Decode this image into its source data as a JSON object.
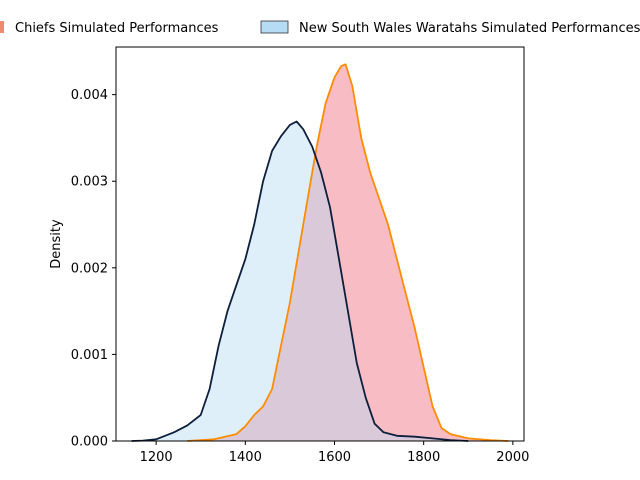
{
  "chart_data": {
    "type": "area",
    "xlabel": "",
    "ylabel": "Density",
    "xlim": [
      1110,
      2025
    ],
    "ylim": [
      0,
      0.00455
    ],
    "x_ticks": [
      "1200",
      "1400",
      "1600",
      "1800",
      "2000"
    ],
    "y_ticks": [
      "0.000",
      "0.001",
      "0.002",
      "0.003",
      "0.004"
    ],
    "legend_position": "top",
    "series": [
      {
        "name": "Chiefs Simulated Performances",
        "fill_color": "#f4a6b0",
        "line_color": "#ff8c00",
        "legend_patch_color": "#f08a70",
        "points": [
          [
            1270,
            0
          ],
          [
            1330,
            2e-05
          ],
          [
            1380,
            8e-05
          ],
          [
            1400,
            0.00017
          ],
          [
            1420,
            0.0003
          ],
          [
            1440,
            0.0004
          ],
          [
            1460,
            0.0006
          ],
          [
            1480,
            0.0011
          ],
          [
            1500,
            0.0016
          ],
          [
            1520,
            0.0022
          ],
          [
            1540,
            0.0028
          ],
          [
            1560,
            0.0034
          ],
          [
            1580,
            0.0039
          ],
          [
            1600,
            0.0042
          ],
          [
            1615,
            0.00433
          ],
          [
            1625,
            0.00435
          ],
          [
            1640,
            0.0041
          ],
          [
            1660,
            0.0035
          ],
          [
            1680,
            0.0031
          ],
          [
            1700,
            0.0028
          ],
          [
            1720,
            0.0025
          ],
          [
            1740,
            0.0021
          ],
          [
            1760,
            0.0017
          ],
          [
            1780,
            0.0013
          ],
          [
            1800,
            0.00085
          ],
          [
            1820,
            0.0004
          ],
          [
            1840,
            0.00015
          ],
          [
            1860,
            8e-05
          ],
          [
            1900,
            3e-05
          ],
          [
            1950,
            1e-05
          ],
          [
            1990,
            0
          ]
        ]
      },
      {
        "name": "New South Wales Waratahs Simulated Performances",
        "fill_color": "#b6dcf5",
        "line_color": "#0d1f3c",
        "legend_patch_color": "#b6dcf5",
        "points": [
          [
            1145,
            0
          ],
          [
            1170,
            5e-06
          ],
          [
            1200,
            2e-05
          ],
          [
            1240,
            0.0001
          ],
          [
            1270,
            0.00018
          ],
          [
            1300,
            0.0003
          ],
          [
            1320,
            0.0006
          ],
          [
            1340,
            0.0011
          ],
          [
            1360,
            0.0015
          ],
          [
            1380,
            0.0018
          ],
          [
            1400,
            0.0021
          ],
          [
            1420,
            0.0025
          ],
          [
            1440,
            0.003
          ],
          [
            1460,
            0.00335
          ],
          [
            1480,
            0.00352
          ],
          [
            1500,
            0.00365
          ],
          [
            1515,
            0.00369
          ],
          [
            1530,
            0.0036
          ],
          [
            1550,
            0.0034
          ],
          [
            1570,
            0.0031
          ],
          [
            1590,
            0.0027
          ],
          [
            1610,
            0.0021
          ],
          [
            1630,
            0.0015
          ],
          [
            1650,
            0.0009
          ],
          [
            1670,
            0.0005
          ],
          [
            1690,
            0.0002
          ],
          [
            1710,
            0.0001
          ],
          [
            1740,
            6e-05
          ],
          [
            1780,
            5e-05
          ],
          [
            1820,
            3e-05
          ],
          [
            1860,
            1e-05
          ],
          [
            1900,
            0
          ]
        ]
      }
    ]
  }
}
